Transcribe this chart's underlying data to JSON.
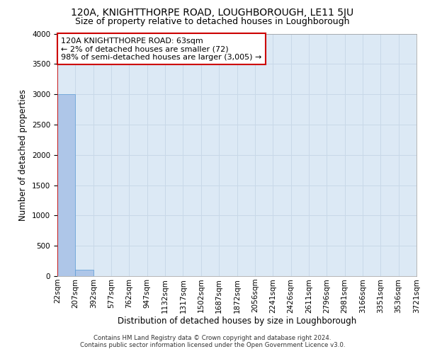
{
  "title": "120A, KNIGHTTHORPE ROAD, LOUGHBOROUGH, LE11 5JU",
  "subtitle": "Size of property relative to detached houses in Loughborough",
  "xlabel": "Distribution of detached houses by size in Loughborough",
  "ylabel": "Number of detached properties",
  "bar_values": [
    3000,
    100,
    0,
    0,
    0,
    0,
    0,
    0,
    0,
    0,
    0,
    0,
    0,
    0,
    0,
    0,
    0,
    0,
    0,
    0
  ],
  "bar_labels": [
    "22sqm",
    "207sqm",
    "392sqm",
    "577sqm",
    "762sqm",
    "947sqm",
    "1132sqm",
    "1317sqm",
    "1502sqm",
    "1687sqm",
    "1872sqm",
    "2056sqm",
    "2241sqm",
    "2426sqm",
    "2611sqm",
    "2796sqm",
    "2981sqm",
    "3166sqm",
    "3351sqm",
    "3536sqm",
    "3721sqm"
  ],
  "bar_color": "#aec6e8",
  "bar_edge_color": "#5a9bd5",
  "annotation_text": "120A KNIGHTTHORPE ROAD: 63sqm\n← 2% of detached houses are smaller (72)\n98% of semi-detached houses are larger (3,005) →",
  "annotation_box_color": "#cc0000",
  "ylim": [
    0,
    4000
  ],
  "yticks": [
    0,
    500,
    1000,
    1500,
    2000,
    2500,
    3000,
    3500,
    4000
  ],
  "grid_color": "#c8d8e8",
  "background_color": "#dce9f5",
  "footer_line1": "Contains HM Land Registry data © Crown copyright and database right 2024.",
  "footer_line2": "Contains public sector information licensed under the Open Government Licence v3.0.",
  "title_fontsize": 10,
  "subtitle_fontsize": 9,
  "axis_label_fontsize": 8.5,
  "tick_fontsize": 7.5,
  "annotation_fontsize": 8
}
